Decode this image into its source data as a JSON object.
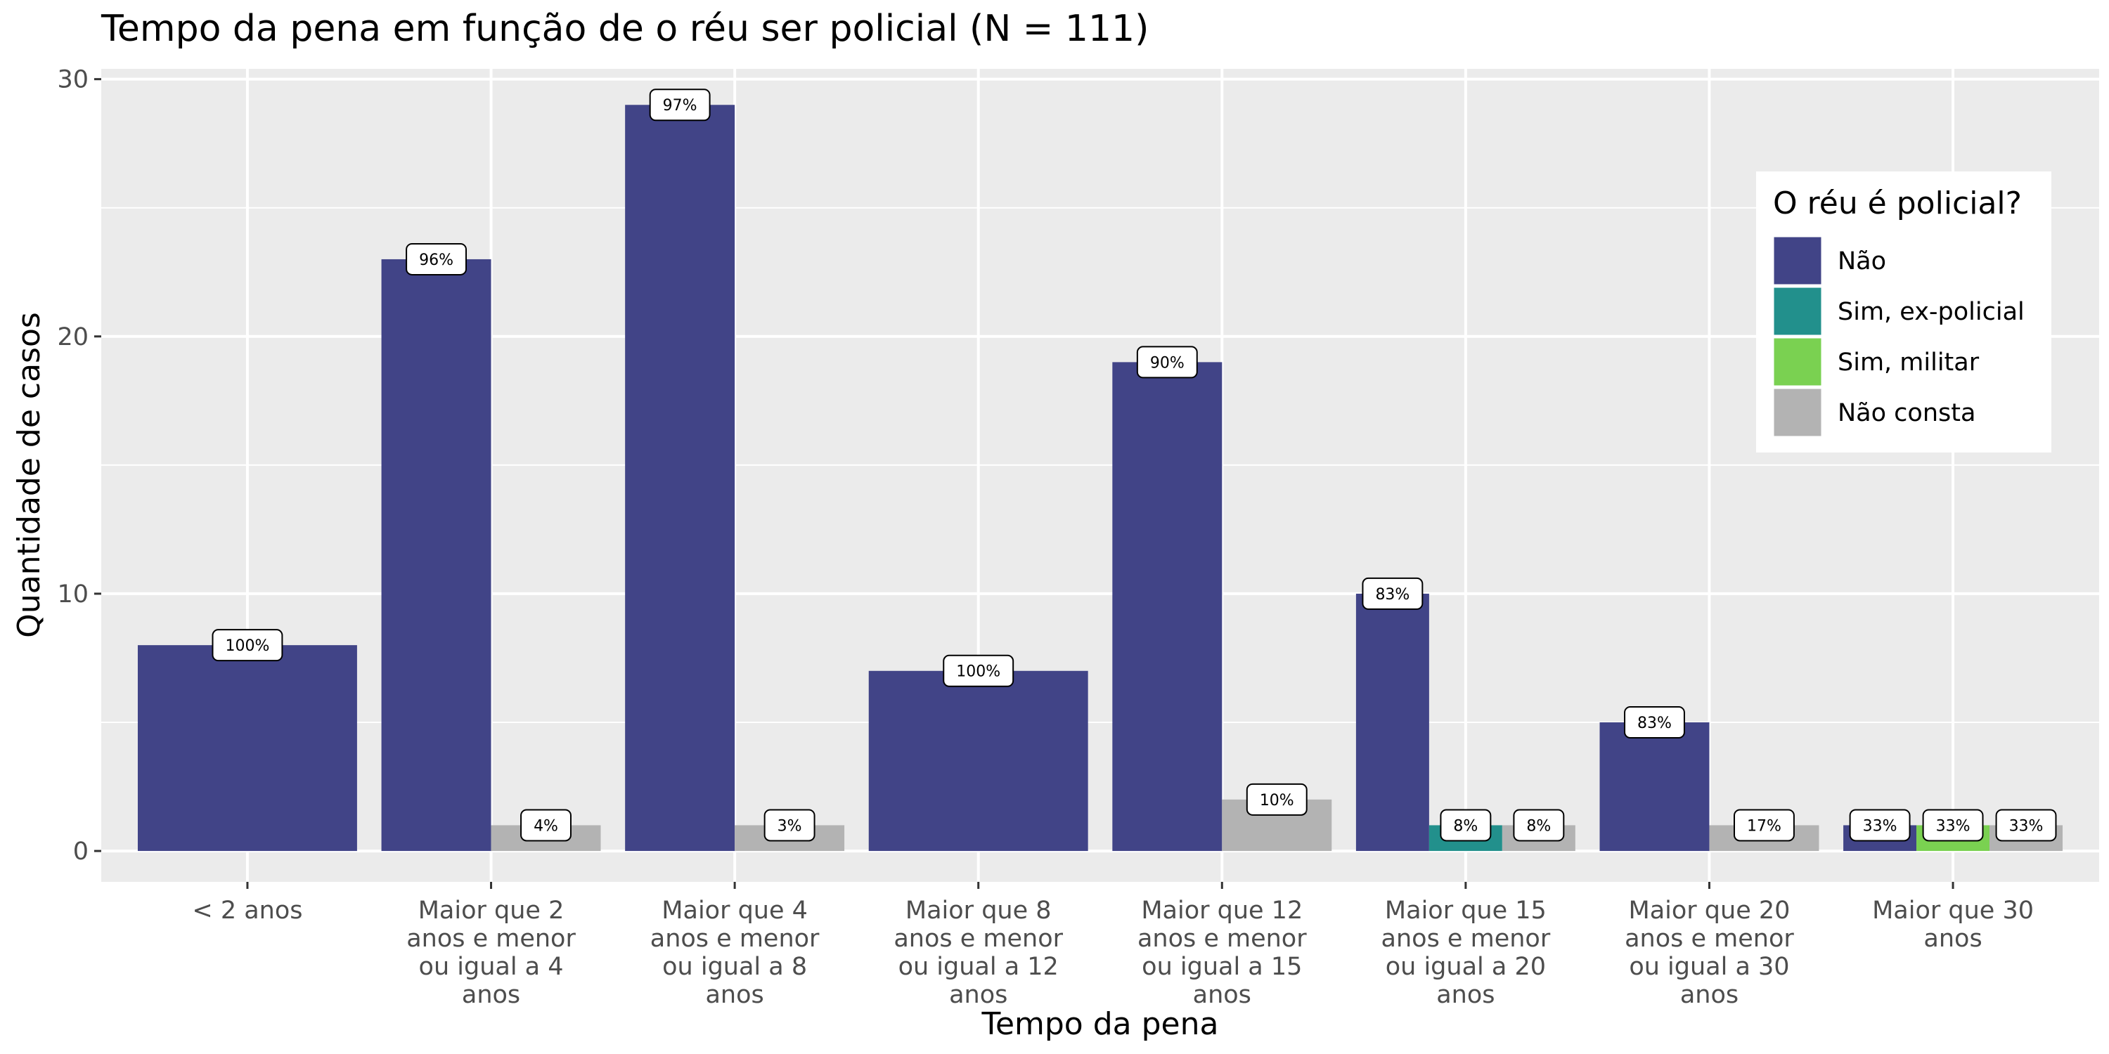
{
  "chart_data": {
    "type": "bar",
    "title": "Tempo da pena em função de o réu ser policial (N = 111)",
    "xlabel": "Tempo da pena",
    "ylabel": "Quantidade de casos",
    "ylim": [
      -1.2,
      30.4
    ],
    "yticks": [
      0,
      10,
      20,
      30
    ],
    "grid": true,
    "legend_position": "right",
    "categories": [
      [
        "< 2 anos"
      ],
      [
        "Maior que 2",
        "anos e menor",
        "ou igual a 4",
        "anos"
      ],
      [
        "Maior que 4",
        "anos e menor",
        "ou igual a 8",
        "anos"
      ],
      [
        "Maior que 8",
        "anos e menor",
        "ou igual a 12",
        "anos"
      ],
      [
        "Maior que 12",
        "anos e menor",
        "ou igual a 15",
        "anos"
      ],
      [
        "Maior que 15",
        "anos e menor",
        "ou igual a 20",
        "anos"
      ],
      [
        "Maior que 20",
        "anos e menor",
        "ou igual a 30",
        "anos"
      ],
      [
        "Maior que 30",
        "anos"
      ]
    ],
    "legend": {
      "title": "O réu é policial?",
      "entries": [
        {
          "name": "Não",
          "color": "#414487"
        },
        {
          "name": "Sim, ex-policial",
          "color": "#22908C"
        },
        {
          "name": "Sim, militar",
          "color": "#7AD151"
        },
        {
          "name": "Não consta",
          "color": "#B3B3B3"
        }
      ]
    },
    "groups": [
      [
        {
          "series": "Não",
          "value": 8,
          "label": "100%"
        }
      ],
      [
        {
          "series": "Não",
          "value": 23,
          "label": "96%"
        },
        {
          "series": "Não consta",
          "value": 1,
          "label": "4%"
        }
      ],
      [
        {
          "series": "Não",
          "value": 29,
          "label": "97%"
        },
        {
          "series": "Não consta",
          "value": 1,
          "label": "3%"
        }
      ],
      [
        {
          "series": "Não",
          "value": 7,
          "label": "100%"
        }
      ],
      [
        {
          "series": "Não",
          "value": 19,
          "label": "90%"
        },
        {
          "series": "Não consta",
          "value": 2,
          "label": "10%"
        }
      ],
      [
        {
          "series": "Não",
          "value": 10,
          "label": "83%"
        },
        {
          "series": "Sim, ex-policial",
          "value": 1,
          "label": "8%"
        },
        {
          "series": "Não consta",
          "value": 1,
          "label": "8%"
        }
      ],
      [
        {
          "series": "Não",
          "value": 5,
          "label": "83%"
        },
        {
          "series": "Não consta",
          "value": 1,
          "label": "17%"
        }
      ],
      [
        {
          "series": "Não",
          "value": 1,
          "label": "33%"
        },
        {
          "series": "Sim, militar",
          "value": 1,
          "label": "33%"
        },
        {
          "series": "Não consta",
          "value": 1,
          "label": "33%"
        }
      ]
    ]
  }
}
